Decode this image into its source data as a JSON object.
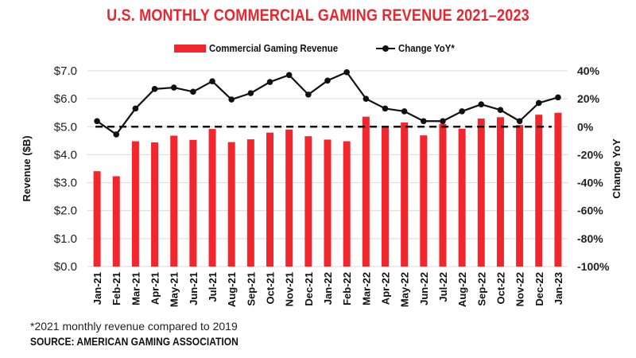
{
  "chart_data": {
    "type": "bar",
    "title": "U.S. MONTHLY COMMERCIAL GAMING REVENUE 2021–2023",
    "categories": [
      "Jan-21",
      "Feb-21",
      "Mar-21",
      "Apr-21",
      "May-21",
      "Jun-21",
      "Jul-21",
      "Aug-21",
      "Sep-21",
      "Oct-21",
      "Nov-21",
      "Dec-21",
      "Jan-22",
      "Feb-22",
      "Mar-22",
      "Apr-22",
      "May-22",
      "Jun-22",
      "Jul-22",
      "Aug-22",
      "Sep-22",
      "Oct-22",
      "Nov-22",
      "Dec-22",
      "Jan-23"
    ],
    "series": [
      {
        "name": "Commercial Gaming Revenue",
        "type": "bar",
        "axis": "left",
        "color": "#f2262d",
        "values": [
          3.41,
          3.23,
          4.48,
          4.44,
          4.68,
          4.53,
          4.92,
          4.45,
          4.55,
          4.79,
          4.9,
          4.66,
          4.54,
          4.48,
          5.36,
          5.0,
          5.15,
          4.69,
          5.1,
          4.93,
          5.29,
          5.34,
          5.06,
          5.43,
          5.5
        ]
      },
      {
        "name": "Change YoY*",
        "type": "line",
        "axis": "right",
        "color": "#111111",
        "values": [
          4,
          -5.5,
          13,
          27,
          28,
          25,
          32.5,
          19.5,
          24,
          32,
          37,
          23,
          33,
          39,
          20,
          13,
          11,
          4,
          4,
          11,
          16,
          12,
          4,
          17,
          21
        ]
      }
    ],
    "reference_line": {
      "axis": "right",
      "value": 0,
      "style": "dashed"
    },
    "ylabel": "Revenue ($B)",
    "y2label": "Change YoY",
    "xlabel": "",
    "ylim": [
      0,
      7
    ],
    "y2lim": [
      -100,
      40
    ],
    "yticks": [
      "$0.0",
      "$1.0",
      "$2.0",
      "$3.0",
      "$4.0",
      "$5.0",
      "$6.0",
      "$7.0"
    ],
    "y2ticks": [
      "-100%",
      "-80%",
      "-60%",
      "-40%",
      "-20%",
      "0%",
      "20%",
      "40%"
    ],
    "grid": true,
    "legend_position": "top-center"
  },
  "legend": {
    "bar_label": "Commercial Gaming Revenue",
    "line_label": "Change YoY*"
  },
  "footnote": "*2021 monthly revenue compared to 2019",
  "source": "SOURCE: AMERICAN GAMING ASSOCIATION"
}
